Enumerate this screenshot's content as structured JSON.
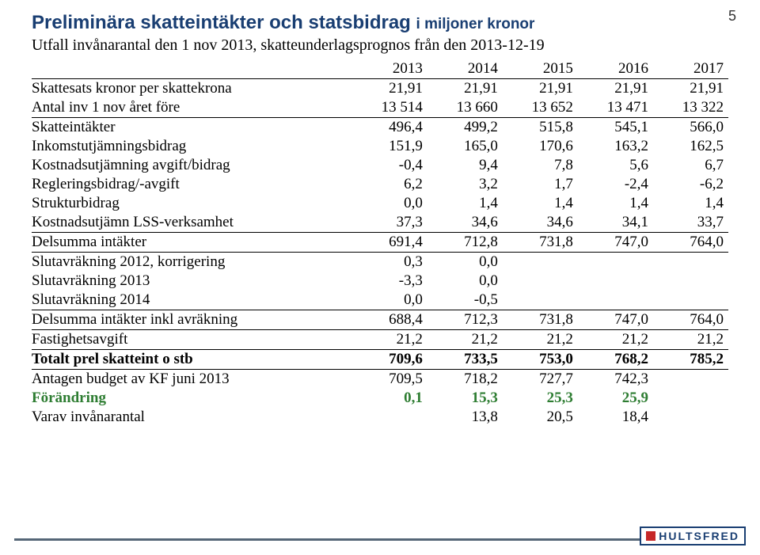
{
  "page_number": "5",
  "title_main": "Preliminära skatteintäkter och statsbidrag",
  "title_sub": "i miljoner kronor",
  "subtitle": "Utfall invånarantal den 1 nov 2013, skatteunderlagsprognos från den 2013-12-19",
  "colors": {
    "heading": "#193e72",
    "green": "#2e7d32",
    "footer_line": "#556677",
    "logo_border": "#193e72",
    "logo_square": "#c62828"
  },
  "years": [
    "2013",
    "2014",
    "2015",
    "2016",
    "2017"
  ],
  "rows": {
    "skattesats": {
      "label": "Skattesats kronor per skattekrona",
      "v": [
        "21,91",
        "21,91",
        "21,91",
        "21,91",
        "21,91"
      ]
    },
    "antal_inv": {
      "label": "Antal inv 1 nov året före",
      "v": [
        "13 514",
        "13 660",
        "13 652",
        "13 471",
        "13 322"
      ]
    },
    "skatteintakter": {
      "label": "Skatteintäkter",
      "v": [
        "496,4",
        "499,2",
        "515,8",
        "545,1",
        "566,0"
      ]
    },
    "inkomstutj": {
      "label": "Inkomstutjämningsbidrag",
      "v": [
        "151,9",
        "165,0",
        "170,6",
        "163,2",
        "162,5"
      ]
    },
    "kostnadsutj_avgift": {
      "label": "Kostnadsutjämning avgift/bidrag",
      "v": [
        "-0,4",
        "9,4",
        "7,8",
        "5,6",
        "6,7"
      ]
    },
    "reglerings": {
      "label": "Regleringsbidrag/-avgift",
      "v": [
        "6,2",
        "3,2",
        "1,7",
        "-2,4",
        "-6,2"
      ]
    },
    "strukturbidrag": {
      "label": "Strukturbidrag",
      "v": [
        "0,0",
        "1,4",
        "1,4",
        "1,4",
        "1,4"
      ]
    },
    "kostnadsutj_lss": {
      "label": "Kostnadsutjämn LSS-verksamhet",
      "v": [
        "37,3",
        "34,6",
        "34,6",
        "34,1",
        "33,7"
      ]
    },
    "delsumma_int": {
      "label": "Delsumma intäkter",
      "v": [
        "691,4",
        "712,8",
        "731,8",
        "747,0",
        "764,0"
      ]
    },
    "slutavr_2012": {
      "label": "Slutavräkning 2012, korrigering",
      "v": [
        "0,3",
        "0,0",
        "",
        "",
        ""
      ]
    },
    "slutavr_2013": {
      "label": "Slutavräkning 2013",
      "v": [
        "-3,3",
        "0,0",
        "",
        "",
        ""
      ]
    },
    "slutavr_2014": {
      "label": "Slutavräkning 2014",
      "v": [
        "0,0",
        "-0,5",
        "",
        "",
        ""
      ]
    },
    "delsumma_avr": {
      "label": "Delsumma intäkter inkl avräkning",
      "v": [
        "688,4",
        "712,3",
        "731,8",
        "747,0",
        "764,0"
      ]
    },
    "fastighetsavgift": {
      "label": "Fastighetsavgift",
      "v": [
        "21,2",
        "21,2",
        "21,2",
        "21,2",
        "21,2"
      ]
    },
    "totalt": {
      "label": "Totalt prel skatteint o stb",
      "v": [
        "709,6",
        "733,5",
        "753,0",
        "768,2",
        "785,2"
      ]
    },
    "antagen_budget": {
      "label": "Antagen budget av KF juni 2013",
      "v": [
        "709,5",
        "718,2",
        "727,7",
        "742,3",
        ""
      ]
    },
    "forandring": {
      "label": "Förändring",
      "v": [
        "0,1",
        "15,3",
        "25,3",
        "25,9",
        ""
      ]
    },
    "varav_inv": {
      "label": "Varav invånarantal",
      "v": [
        "",
        "13,8",
        "20,5",
        "18,4",
        ""
      ]
    }
  },
  "logo_text": "HULTSFRED"
}
